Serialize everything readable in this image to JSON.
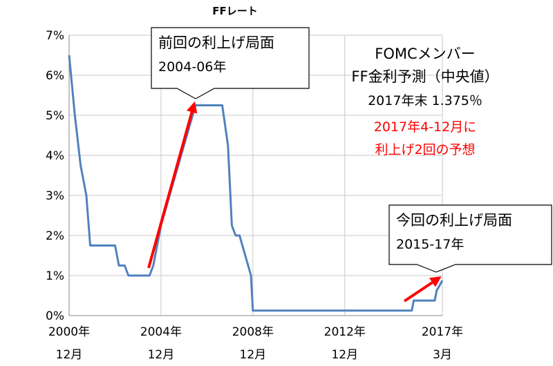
{
  "chart_data": {
    "type": "line",
    "title": "FFレート",
    "xlabel": "",
    "ylabel": "",
    "ylim": [
      0,
      7
    ],
    "grid": true,
    "y_ticks": [
      "0%",
      "1%",
      "2%",
      "3%",
      "4%",
      "5%",
      "6%",
      "7%"
    ],
    "x_ticks": [
      {
        "year": "2000年",
        "month": "12月"
      },
      {
        "year": "2004年",
        "month": "12月"
      },
      {
        "year": "2008年",
        "month": "12月"
      },
      {
        "year": "2012年",
        "month": "12月"
      },
      {
        "year": "2017年",
        "month": "3月"
      }
    ],
    "series": [
      {
        "color": "#4f81bd",
        "points": [
          [
            "2000-12",
            6.5
          ],
          [
            "2001-03",
            5.0
          ],
          [
            "2001-06",
            3.75
          ],
          [
            "2001-09",
            3.0
          ],
          [
            "2001-11",
            1.75
          ],
          [
            "2002-12",
            1.75
          ],
          [
            "2003-02",
            1.25
          ],
          [
            "2003-05",
            1.25
          ],
          [
            "2003-07",
            1.0
          ],
          [
            "2004-06",
            1.0
          ],
          [
            "2004-08",
            1.25
          ],
          [
            "2004-12",
            2.25
          ],
          [
            "2005-06",
            3.25
          ],
          [
            "2005-12",
            4.25
          ],
          [
            "2006-06",
            5.25
          ],
          [
            "2007-08",
            5.25
          ],
          [
            "2007-11",
            4.25
          ],
          [
            "2008-01",
            2.25
          ],
          [
            "2008-03",
            2.0
          ],
          [
            "2008-05",
            2.0
          ],
          [
            "2008-11",
            1.0
          ],
          [
            "2008-12",
            0.125
          ],
          [
            "2015-11",
            0.125
          ],
          [
            "2015-12",
            0.375
          ],
          [
            "2016-11",
            0.375
          ],
          [
            "2016-12",
            0.625
          ],
          [
            "2017-03",
            0.875
          ]
        ]
      }
    ],
    "annotations": {
      "callout_2004": {
        "line1": "前回の利上げ局面",
        "line2": "2004-06年"
      },
      "callout_2015": {
        "line1": "今回の利上げ局面",
        "line2": "2015-17年"
      },
      "fomc": {
        "line1": "FOMCメンバー",
        "line2": "FF金利予測（中央値）",
        "line3": "2017年末  1.375％",
        "line4": "2017年4-12月に",
        "line5": "利上げ2回の予想",
        "line4_color": "#ff0000",
        "line5_color": "#ff0000"
      },
      "arrow_color": "#ff0000"
    }
  }
}
